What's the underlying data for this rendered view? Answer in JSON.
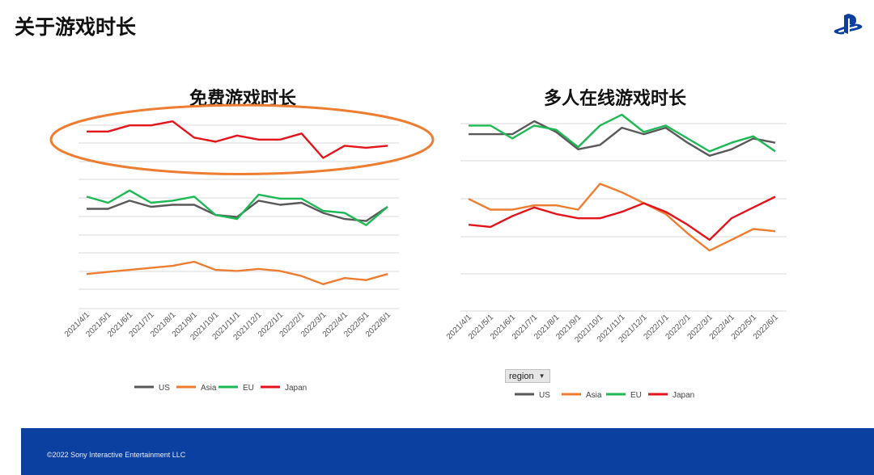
{
  "page": {
    "title": "关于游戏时长",
    "footer": "©2022 Sony Interactive Entertainment LLC",
    "brand_color": "#0b3fa0"
  },
  "region_filter": {
    "label": "region",
    "icon": "dropdown-caret-icon"
  },
  "chart_data": [
    {
      "type": "line",
      "title": "免费游戏时长",
      "xlabel": "",
      "ylabel": "",
      "y_axis_labels": "none",
      "ylim": [
        0,
        100
      ],
      "grid": true,
      "legend_position": "bottom",
      "x": [
        "2021/4/1",
        "2021/5/1",
        "2021/6/1",
        "2021/7/1",
        "2021/8/1",
        "2021/9/1",
        "2021/10/1",
        "2021/11/1",
        "2021/12/1",
        "2022/1/1",
        "2022/2/1",
        "2022/3/1",
        "2022/4/1",
        "2022/5/1",
        "2022/6/1"
      ],
      "series": [
        {
          "name": "US",
          "color": "#595959",
          "values": [
            49,
            49,
            53,
            50,
            51,
            51,
            46,
            45,
            53,
            51,
            52,
            47,
            44,
            43,
            50
          ]
        },
        {
          "name": "Asia",
          "color": "#ed7d31",
          "values": [
            17,
            18,
            19,
            20,
            21,
            23,
            19,
            18.5,
            19.5,
            18.5,
            16,
            12,
            15,
            14,
            17
          ]
        },
        {
          "name": "EU",
          "color": "#1db954",
          "values": [
            55,
            52,
            58,
            52,
            53,
            55,
            46,
            44,
            56,
            54,
            54,
            48,
            47,
            41,
            50
          ]
        },
        {
          "name": "Japan",
          "color": "#e4141b",
          "values": [
            87,
            87,
            90,
            90,
            92,
            84,
            82,
            85,
            83,
            83,
            86,
            74,
            80,
            79,
            80
          ]
        }
      ],
      "annotation": {
        "type": "ellipse-highlight",
        "target": "Japan",
        "color": "#ed7d31"
      }
    },
    {
      "type": "line",
      "title": "多人在线游戏时长",
      "xlabel": "",
      "ylabel": "",
      "y_axis_labels": "none",
      "ylim": [
        0,
        100
      ],
      "grid": true,
      "legend_position": "bottom",
      "x": [
        "2021/4/1",
        "2021/5/1",
        "2021/6/1",
        "2021/7/1",
        "2021/8/1",
        "2021/9/1",
        "2021/10/1",
        "2021/11/1",
        "2021/12/1",
        "2022/1/1",
        "2022/2/1",
        "2022/3/1",
        "2022/4/1",
        "2022/5/1",
        "2022/6/1"
      ],
      "series": [
        {
          "name": "US",
          "color": "#595959",
          "values": [
            82,
            82,
            82,
            88,
            83,
            75,
            77,
            85,
            82,
            85,
            78,
            72,
            75,
            80,
            78
          ]
        },
        {
          "name": "Asia",
          "color": "#ed7d31",
          "values": [
            52,
            47,
            47,
            49,
            49,
            47,
            59,
            55,
            50,
            45,
            36,
            28,
            33,
            38,
            37
          ]
        },
        {
          "name": "EU",
          "color": "#1db954",
          "values": [
            86,
            86,
            80,
            86,
            84,
            76,
            86,
            91,
            83,
            86,
            80,
            74,
            78,
            81,
            74
          ]
        },
        {
          "name": "Japan",
          "color": "#e4141b",
          "values": [
            40,
            39,
            44,
            48,
            45,
            43,
            43,
            46,
            50,
            46,
            40,
            33,
            43,
            48,
            53
          ]
        }
      ]
    }
  ]
}
